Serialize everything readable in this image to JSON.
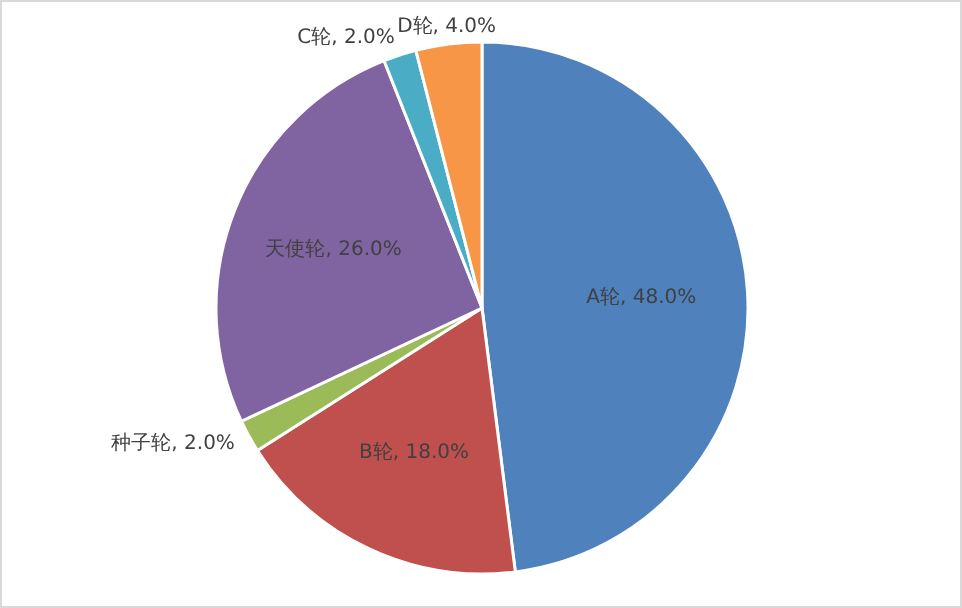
{
  "chart_data": {
    "type": "pie",
    "categories": [
      "A轮",
      "B轮",
      "种子轮",
      "天使轮",
      "C轮",
      "D轮"
    ],
    "values": [
      48,
      18,
      2,
      26,
      2,
      4
    ],
    "colors": [
      "#4f81bd",
      "#c0504d",
      "#9bbb59",
      "#8064a2",
      "#4bacc6",
      "#f79646"
    ],
    "value_labels": [
      "48.0%",
      "18.0%",
      "2.0%",
      "26.0%",
      "2.0%",
      "4.0%"
    ]
  }
}
